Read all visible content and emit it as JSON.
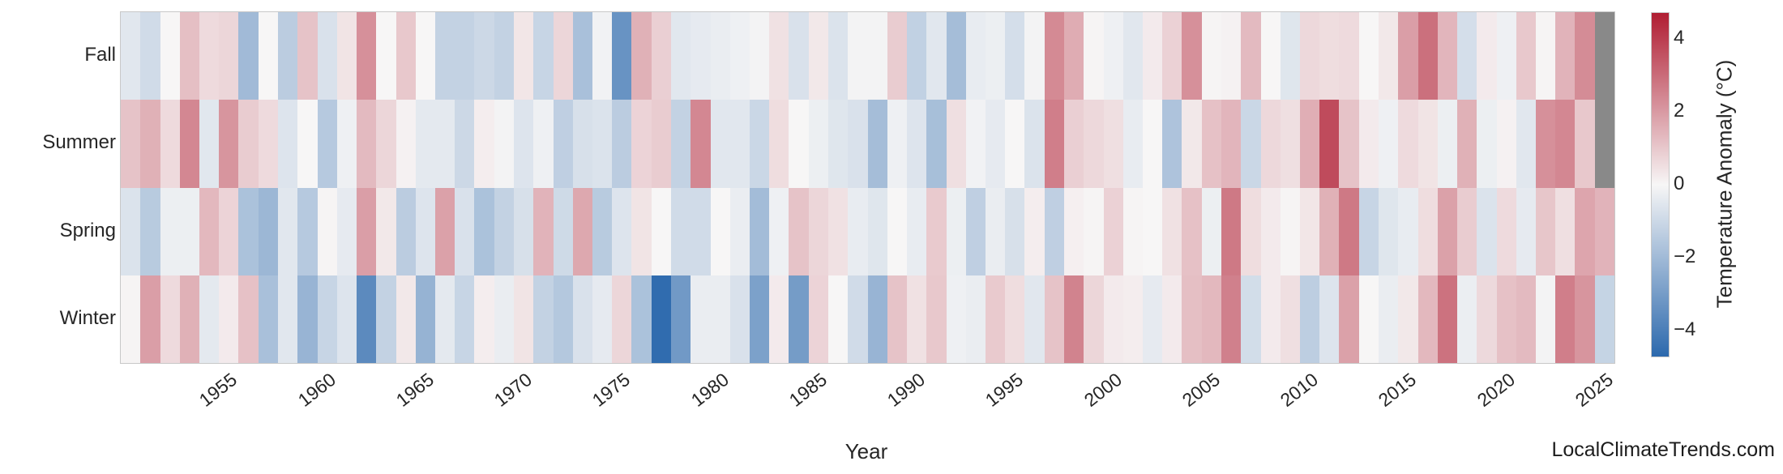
{
  "figure": {
    "xlabel": "Year",
    "watermark": "LocalClimateTrends.com",
    "background": "#ffffff",
    "frame_color": "#c8c8c8",
    "text_color": "#262626"
  },
  "colorbar": {
    "label": "Temperature Anomaly (°C)",
    "ticks": [
      4,
      2,
      0,
      -2,
      -4
    ],
    "vmin": -4.7,
    "vmax": 4.7,
    "color_positive_end": "#b01d32",
    "color_zero": "#f7f6f6",
    "color_negative_end": "#2c69ad",
    "missing_color": "#898989"
  },
  "chart_data": {
    "type": "heatmap",
    "title": "",
    "xlabel": "Year",
    "ylabel": "",
    "x_start": 1950,
    "x_end": 2025,
    "x_tick_labels": [
      "1955",
      "1960",
      "1965",
      "1970",
      "1975",
      "1980",
      "1985",
      "1990",
      "1995",
      "2000",
      "2005",
      "2010",
      "2015",
      "2020",
      "2025"
    ],
    "categories": [
      "Fall",
      "Summer",
      "Spring",
      "Winter"
    ],
    "value_unit": "°C anomaly",
    "grid": false,
    "legend_position": "right-colorbar",
    "series": [
      {
        "name": "Fall",
        "values": [
          -0.5,
          -0.9,
          0.0,
          1.2,
          0.6,
          0.7,
          -2.0,
          0.0,
          -1.4,
          1.1,
          -0.7,
          0.4,
          2.2,
          0.0,
          1.0,
          0.0,
          -1.2,
          -1.2,
          -1.0,
          -1.2,
          0.35,
          -1.1,
          0.7,
          -1.8,
          -0.15,
          -3.3,
          1.5,
          0.85,
          -0.5,
          -0.4,
          -0.3,
          -0.2,
          -0.1,
          0.45,
          -0.7,
          0.3,
          -0.65,
          -0.1,
          -0.1,
          0.9,
          -1.25,
          -0.5,
          -1.9,
          -0.35,
          -0.25,
          -0.8,
          -0.1,
          2.35,
          1.6,
          0.05,
          -0.2,
          -0.5,
          0.25,
          0.8,
          2.2,
          0.05,
          0.1,
          1.3,
          0.0,
          -0.55,
          0.65,
          0.55,
          0.6,
          0.0,
          0.3,
          1.9,
          2.9,
          1.4,
          -0.8,
          0.25,
          -0.2,
          1.0,
          0.05,
          1.45,
          2.3,
          null
        ]
      },
      {
        "name": "Summer",
        "values": [
          1.1,
          1.5,
          0.6,
          2.4,
          -0.5,
          2.1,
          0.9,
          0.6,
          -0.6,
          0.0,
          -1.5,
          -0.2,
          1.3,
          0.7,
          0.1,
          -0.45,
          -0.45,
          -1.0,
          0.2,
          -0.1,
          -0.6,
          -0.2,
          -1.3,
          -0.75,
          -0.65,
          -1.4,
          0.75,
          0.9,
          -1.2,
          2.4,
          -0.5,
          -0.5,
          -1.05,
          0.55,
          0.0,
          -0.25,
          -0.55,
          -0.7,
          -1.9,
          -0.2,
          -0.6,
          -1.85,
          0.5,
          -0.15,
          -0.4,
          0.0,
          -0.65,
          2.6,
          0.85,
          0.65,
          0.5,
          -0.35,
          0.0,
          -1.7,
          0.3,
          1.15,
          1.4,
          -1.05,
          0.65,
          0.5,
          1.55,
          3.7,
          1.1,
          0.25,
          -0.2,
          0.6,
          0.4,
          -0.25,
          1.5,
          -0.25,
          0.1,
          -0.5,
          2.2,
          2.4,
          1.0,
          null
        ]
      },
      {
        "name": "Spring",
        "values": [
          -0.65,
          -1.45,
          -0.25,
          -0.25,
          1.35,
          0.75,
          -1.75,
          -2.1,
          -0.5,
          -1.5,
          0.05,
          -0.4,
          1.9,
          0.3,
          -1.4,
          -0.6,
          1.85,
          -0.7,
          -1.75,
          -1.2,
          -0.75,
          1.45,
          -0.95,
          1.7,
          -1.45,
          -0.6,
          0.4,
          0.0,
          -0.9,
          -0.9,
          0.0,
          -0.3,
          -1.95,
          -0.2,
          1.1,
          0.7,
          0.45,
          -0.35,
          -0.55,
          0.0,
          -0.35,
          0.95,
          -0.25,
          -1.3,
          -0.3,
          -0.75,
          0.2,
          -1.3,
          0.15,
          0.05,
          0.8,
          0.05,
          0.0,
          0.45,
          1.15,
          -0.25,
          2.7,
          0.55,
          0.25,
          0.05,
          0.35,
          1.5,
          2.7,
          -1.1,
          -0.55,
          -0.35,
          0.55,
          1.85,
          0.9,
          -0.65,
          0.6,
          -0.4,
          1.05,
          0.5,
          1.75,
          1.45
        ]
      },
      {
        "name": "Winter",
        "values": [
          0.05,
          1.9,
          0.6,
          1.5,
          -0.45,
          0.25,
          1.15,
          -1.8,
          -0.5,
          -2.2,
          -1.1,
          -0.6,
          -3.6,
          -1.2,
          0.3,
          -2.25,
          -0.45,
          -1.1,
          0.2,
          -0.3,
          0.4,
          -1.2,
          -1.55,
          -0.7,
          -0.4,
          0.7,
          -1.75,
          -4.6,
          -3.1,
          -0.3,
          -0.3,
          -0.7,
          -2.85,
          0.25,
          -3.0,
          0.75,
          0.0,
          -0.9,
          -2.2,
          1.1,
          0.45,
          1.0,
          -0.2,
          -0.3,
          0.95,
          0.55,
          -0.5,
          1.1,
          2.5,
          0.7,
          0.25,
          0.2,
          -0.4,
          0.25,
          1.2,
          1.35,
          2.55,
          -0.85,
          0.25,
          0.5,
          -1.35,
          -0.6,
          1.85,
          0.0,
          -0.3,
          0.3,
          1.35,
          2.85,
          -0.28,
          0.63,
          1.15,
          1.3,
          -0.1,
          2.6,
          2.1,
          -1.15
        ]
      }
    ]
  }
}
